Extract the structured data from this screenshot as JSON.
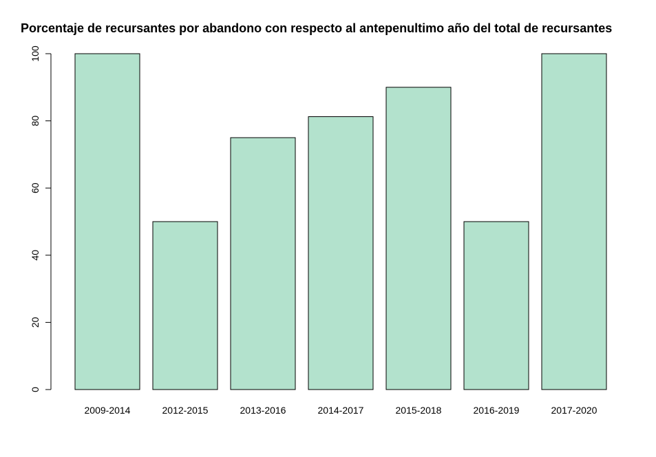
{
  "chart_data": {
    "type": "bar",
    "title": "Porcentaje de recursantes por abandono con respecto al antepenultimo año del total de recursantes",
    "xlabel": "",
    "ylabel": "",
    "categories": [
      "2009-2014",
      "2012-2015",
      "2013-2016",
      "2014-2017",
      "2015-2018",
      "2016-2019",
      "2017-2020"
    ],
    "values": [
      100,
      50,
      75,
      81.25,
      90,
      50,
      100
    ],
    "ylim": [
      0,
      100
    ],
    "yticks": [
      0,
      20,
      40,
      60,
      80,
      100
    ],
    "grid": false,
    "bar_color": "#b3e2cd",
    "bar_border_color": "#000000"
  }
}
